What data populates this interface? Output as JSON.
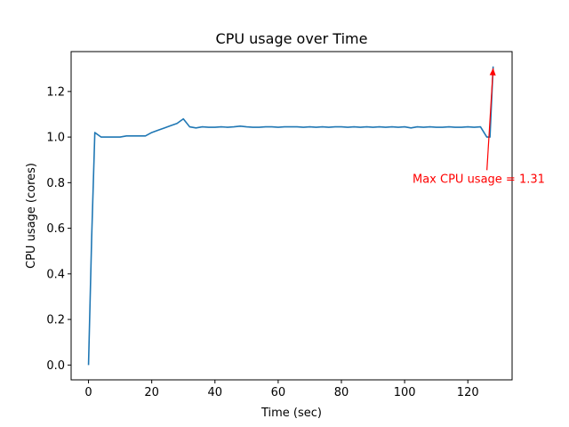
{
  "chart_data": {
    "type": "line",
    "title": "CPU usage over Time",
    "xlabel": "Time (sec)",
    "ylabel": "CPU usage (cores)",
    "xlim": [
      -5.5,
      134
    ],
    "ylim": [
      -0.065,
      1.375
    ],
    "xticks": [
      0,
      20,
      40,
      60,
      80,
      100,
      120
    ],
    "yticks": [
      0.0,
      0.2,
      0.4,
      0.6,
      0.8,
      1.0,
      1.2
    ],
    "xtick_labels": [
      "0",
      "20",
      "40",
      "60",
      "80",
      "100",
      "120"
    ],
    "ytick_labels": [
      "0.0",
      "0.2",
      "0.4",
      "0.6",
      "0.8",
      "1.0",
      "1.2"
    ],
    "grid": false,
    "line_color": "#1f77b4",
    "annotation_color": "#ff0000",
    "series": [
      {
        "x": [
          0,
          1,
          2,
          4,
          6,
          8,
          10,
          12,
          14,
          16,
          18,
          20,
          22,
          24,
          26,
          28,
          30,
          32,
          34,
          36,
          38,
          40,
          42,
          44,
          46,
          48,
          50,
          52,
          54,
          56,
          58,
          60,
          62,
          64,
          66,
          68,
          70,
          72,
          74,
          76,
          78,
          80,
          82,
          84,
          86,
          88,
          90,
          92,
          94,
          96,
          98,
          100,
          102,
          104,
          106,
          108,
          110,
          112,
          114,
          116,
          118,
          120,
          122,
          124,
          126,
          127,
          128
        ],
        "values": [
          0.0,
          0.56,
          1.02,
          1.0,
          1.0,
          1.0,
          1.0,
          1.005,
          1.005,
          1.005,
          1.005,
          1.02,
          1.03,
          1.04,
          1.05,
          1.06,
          1.08,
          1.045,
          1.04,
          1.045,
          1.043,
          1.043,
          1.045,
          1.043,
          1.045,
          1.048,
          1.045,
          1.043,
          1.043,
          1.045,
          1.045,
          1.043,
          1.045,
          1.045,
          1.045,
          1.043,
          1.045,
          1.043,
          1.045,
          1.043,
          1.045,
          1.045,
          1.043,
          1.045,
          1.043,
          1.045,
          1.043,
          1.045,
          1.043,
          1.045,
          1.043,
          1.045,
          1.04,
          1.045,
          1.043,
          1.045,
          1.043,
          1.043,
          1.045,
          1.043,
          1.043,
          1.045,
          1.043,
          1.045,
          1.0,
          1.0,
          1.31
        ]
      }
    ],
    "annotation": {
      "text": "Max CPU usage = 1.31",
      "text_x": 102.5,
      "text_y": 0.8,
      "point_x": 128,
      "point_y": 1.31
    }
  }
}
